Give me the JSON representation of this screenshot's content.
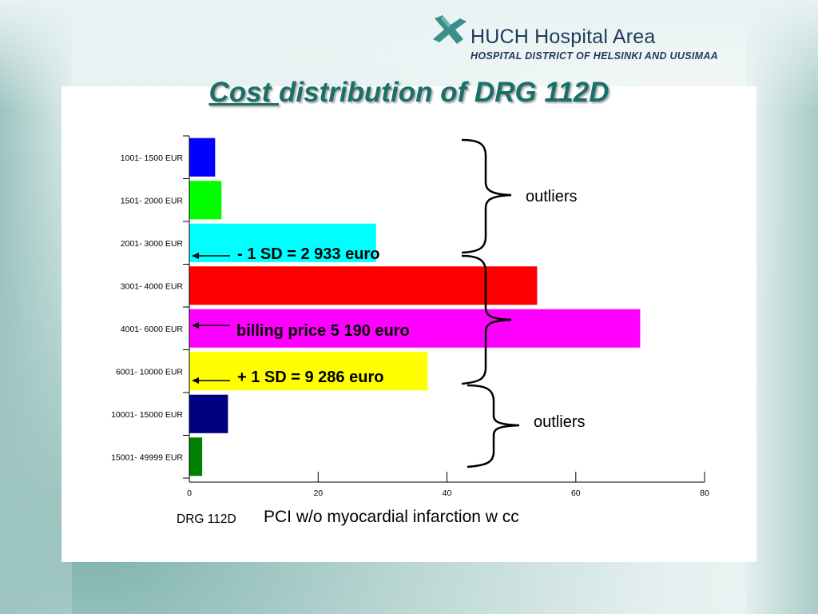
{
  "header": {
    "logo_main": "HUCH Hospital Area",
    "logo_sub": "HOSPITAL DISTRICT OF HELSINKI AND UUSIMAA",
    "title_underlined": "Cost ",
    "title_rest": "distribution of DRG 112D"
  },
  "chart_data": {
    "type": "bar",
    "orientation": "horizontal",
    "categories": [
      "1001- 1500 EUR",
      "1501- 2000 EUR",
      "2001- 3000 EUR",
      "3001- 4000 EUR",
      "4001- 6000 EUR",
      "6001- 10000 EUR",
      "10001- 15000 EUR",
      "15001- 49999 EUR"
    ],
    "values": [
      4,
      5,
      29,
      54,
      70,
      37,
      6,
      2
    ],
    "colors": [
      "#0000ff",
      "#00ff00",
      "#00ffff",
      "#ff0000",
      "#ff00ff",
      "#ffff00",
      "#000080",
      "#008000"
    ],
    "xlim": [
      0,
      80
    ],
    "xticks": [
      "0",
      "20",
      "40",
      "60",
      "80"
    ],
    "grid": false,
    "annotations": {
      "minus_sd": "- 1 SD = 2 933 euro",
      "billing": "billing price 5 190 euro",
      "plus_sd": "+ 1 SD = 9 286 euro",
      "outliers_top": "outliers",
      "outliers_bottom": "outliers"
    }
  },
  "footer": {
    "drg": "DRG 112D",
    "description": "PCI w/o myocardial infarction w cc"
  }
}
